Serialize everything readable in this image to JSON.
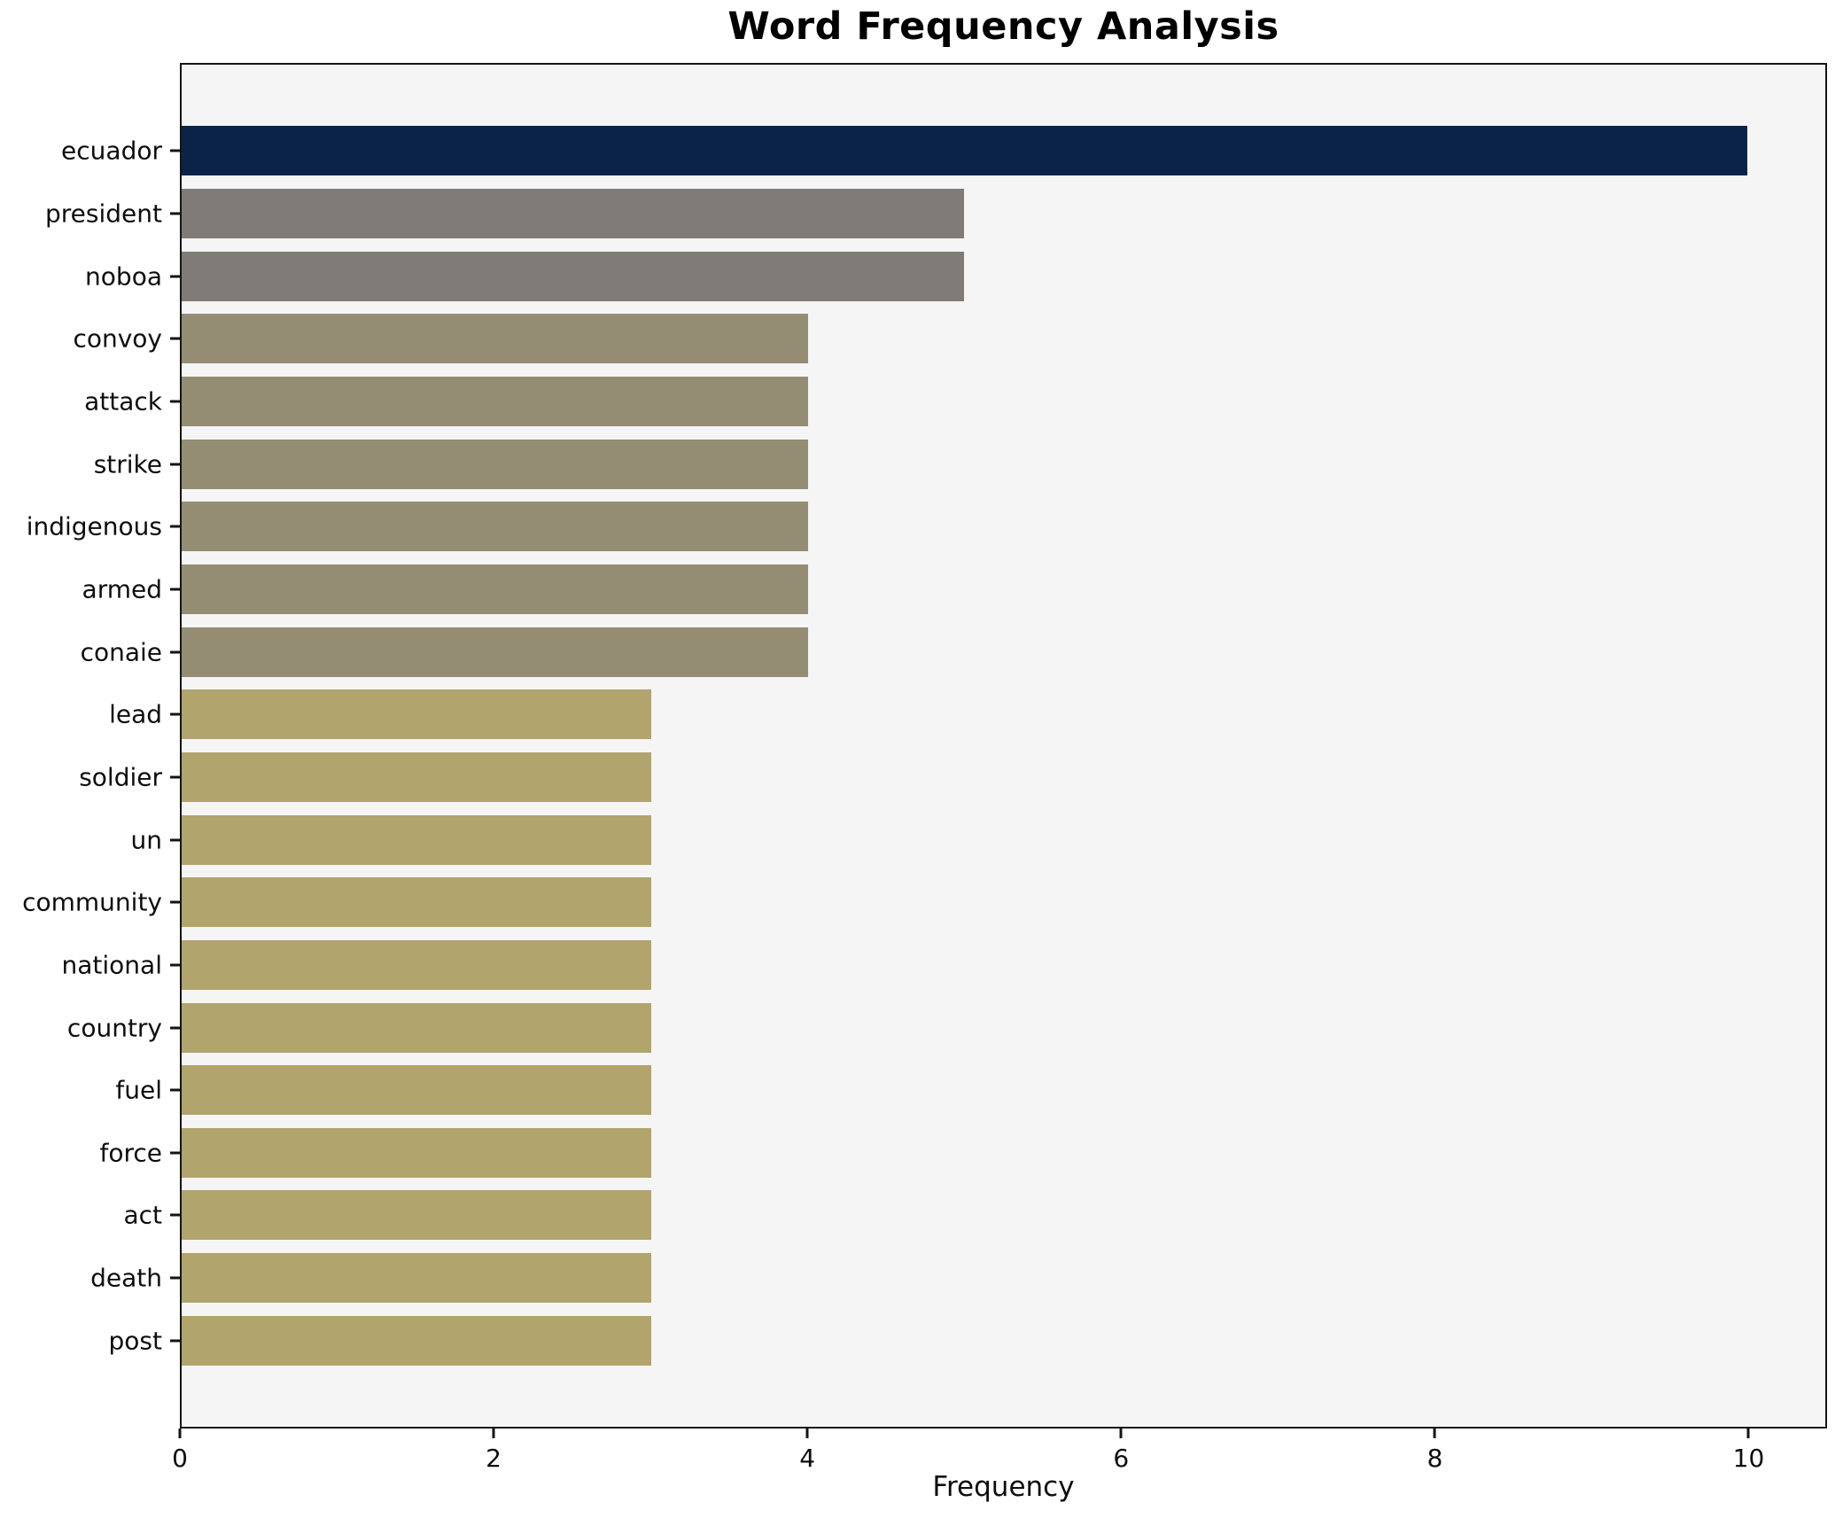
{
  "title": "Word Frequency Analysis",
  "chart_data": {
    "type": "bar",
    "orientation": "horizontal",
    "title": "Word Frequency Analysis",
    "xlabel": "Frequency",
    "ylabel": "",
    "categories": [
      "ecuador",
      "president",
      "noboa",
      "convoy",
      "attack",
      "strike",
      "indigenous",
      "armed",
      "conaie",
      "lead",
      "soldier",
      "un",
      "community",
      "national",
      "country",
      "fuel",
      "force",
      "act",
      "death",
      "post"
    ],
    "values": [
      10,
      5,
      5,
      4,
      4,
      4,
      4,
      4,
      4,
      3,
      3,
      3,
      3,
      3,
      3,
      3,
      3,
      3,
      3,
      3
    ],
    "bar_colors": [
      "#0b2347",
      "#7f7c77",
      "#7f7c77",
      "#948d74",
      "#948d74",
      "#948d74",
      "#948d74",
      "#948d74",
      "#948d74",
      "#b1a46c",
      "#b1a46c",
      "#b1a46c",
      "#b1a46c",
      "#b1a46c",
      "#b1a46c",
      "#b1a46c",
      "#b1a46c",
      "#b1a46c",
      "#b1a46c",
      "#b1a46c"
    ],
    "xlim": [
      0,
      10.5
    ],
    "xticks": [
      0,
      2,
      4,
      6,
      8,
      10
    ],
    "grid": false,
    "legend_position": "none",
    "plot_background": "#f5f5f6",
    "figure_background": "#ffffff",
    "spine_color": "#141414"
  }
}
